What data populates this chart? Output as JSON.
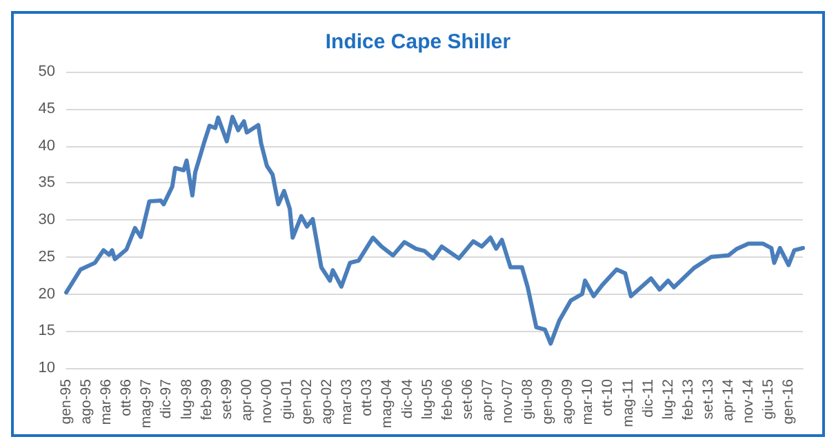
{
  "chart_data": {
    "type": "line",
    "title": "Indice Cape Shiller",
    "x": [
      "1995-01",
      "1995-06",
      "1995-11",
      "1996-02",
      "1996-04",
      "1996-05",
      "1996-06",
      "1996-10",
      "1997-01",
      "1997-03",
      "1997-06",
      "1997-10",
      "1997-11",
      "1998-02",
      "1998-03",
      "1998-06",
      "1998-07",
      "1998-09",
      "1998-10",
      "1999-01",
      "1999-03",
      "1999-05",
      "1999-06",
      "1999-09",
      "1999-11",
      "2000-01",
      "2000-03",
      "2000-04",
      "2000-08",
      "2000-09",
      "2000-11",
      "2001-01",
      "2001-03",
      "2001-05",
      "2001-07",
      "2001-08",
      "2001-11",
      "2002-01",
      "2002-03",
      "2002-06",
      "2002-09",
      "2002-10",
      "2003-01",
      "2003-04",
      "2003-07",
      "2003-12",
      "2004-03",
      "2004-05",
      "2004-07",
      "2004-11",
      "2005-03",
      "2005-06",
      "2005-09",
      "2005-12",
      "2006-06",
      "2006-11",
      "2007-02",
      "2007-05",
      "2007-07",
      "2007-09",
      "2007-12",
      "2008-04",
      "2008-06",
      "2008-09",
      "2008-12",
      "2009-02",
      "2009-05",
      "2009-09",
      "2010-01",
      "2010-02",
      "2010-05",
      "2010-08",
      "2011-01",
      "2011-04",
      "2011-06",
      "2012-01",
      "2012-04",
      "2012-07",
      "2012-09",
      "2013-04",
      "2013-10",
      "2014-04",
      "2014-07",
      "2014-11",
      "2015-04",
      "2015-07",
      "2015-08",
      "2015-10",
      "2016-01",
      "2016-03",
      "2016-06"
    ],
    "series": [
      {
        "color": "#4a7ebb",
        "values": [
          20.2,
          23.3,
          24.2,
          25.9,
          25.3,
          25.9,
          24.7,
          26.0,
          28.9,
          27.7,
          32.5,
          32.6,
          32.1,
          34.5,
          37.0,
          36.7,
          38.0,
          33.3,
          36.4,
          40.3,
          42.7,
          42.4,
          43.8,
          40.6,
          43.9,
          42.1,
          43.3,
          41.8,
          42.8,
          40.3,
          37.3,
          36.1,
          32.1,
          33.9,
          31.5,
          27.6,
          30.5,
          29.1,
          30.1,
          23.6,
          21.8,
          23.2,
          21.0,
          24.2,
          24.5,
          27.6,
          26.4,
          25.8,
          25.2,
          27.0,
          26.1,
          25.8,
          24.8,
          26.4,
          24.8,
          27.1,
          26.4,
          27.6,
          26.1,
          27.3,
          23.6,
          23.6,
          20.9,
          15.5,
          15.2,
          13.3,
          16.4,
          19.1,
          20.0,
          21.8,
          19.7,
          21.2,
          23.3,
          22.8,
          19.7,
          22.1,
          20.6,
          21.8,
          20.9,
          23.5,
          25.0,
          25.2,
          26.1,
          26.8,
          26.8,
          26.2,
          24.2,
          26.2,
          23.9,
          25.9,
          26.2
        ]
      }
    ],
    "xlim": [
      "1995-01",
      "2016-06"
    ],
    "xticks": [
      {
        "value": "1995-01",
        "label": "gen-95"
      },
      {
        "value": "1995-08",
        "label": "ago-95"
      },
      {
        "value": "1996-03",
        "label": "mar-96"
      },
      {
        "value": "1996-10",
        "label": "ott-96"
      },
      {
        "value": "1997-05",
        "label": "mag-97"
      },
      {
        "value": "1997-12",
        "label": "dic-97"
      },
      {
        "value": "1998-07",
        "label": "lug-98"
      },
      {
        "value": "1999-02",
        "label": "feb-99"
      },
      {
        "value": "1999-09",
        "label": "set-99"
      },
      {
        "value": "2000-04",
        "label": "apr-00"
      },
      {
        "value": "2000-11",
        "label": "nov-00"
      },
      {
        "value": "2001-06",
        "label": "giu-01"
      },
      {
        "value": "2002-01",
        "label": "gen-02"
      },
      {
        "value": "2002-08",
        "label": "ago-02"
      },
      {
        "value": "2003-03",
        "label": "mar-03"
      },
      {
        "value": "2003-10",
        "label": "ott-03"
      },
      {
        "value": "2004-05",
        "label": "mag-04"
      },
      {
        "value": "2004-12",
        "label": "dic-04"
      },
      {
        "value": "2005-07",
        "label": "lug-05"
      },
      {
        "value": "2006-02",
        "label": "feb-06"
      },
      {
        "value": "2006-09",
        "label": "set-06"
      },
      {
        "value": "2007-04",
        "label": "apr-07"
      },
      {
        "value": "2007-11",
        "label": "nov-07"
      },
      {
        "value": "2008-06",
        "label": "giu-08"
      },
      {
        "value": "2009-01",
        "label": "gen-09"
      },
      {
        "value": "2009-08",
        "label": "ago-09"
      },
      {
        "value": "2010-03",
        "label": "mar-10"
      },
      {
        "value": "2010-10",
        "label": "ott-10"
      },
      {
        "value": "2011-05",
        "label": "mag-11"
      },
      {
        "value": "2011-12",
        "label": "dic-11"
      },
      {
        "value": "2012-07",
        "label": "lug-12"
      },
      {
        "value": "2013-02",
        "label": "feb-13"
      },
      {
        "value": "2013-09",
        "label": "set-13"
      },
      {
        "value": "2014-04",
        "label": "apr-14"
      },
      {
        "value": "2014-11",
        "label": "nov-14"
      },
      {
        "value": "2015-06",
        "label": "giu-15"
      },
      {
        "value": "2016-01",
        "label": "gen-16"
      }
    ],
    "ylim": [
      10,
      50
    ],
    "yticks": [
      10,
      15,
      20,
      25,
      30,
      35,
      40,
      45,
      50
    ],
    "grid": "y",
    "marker": "none",
    "line_style": "solid"
  }
}
